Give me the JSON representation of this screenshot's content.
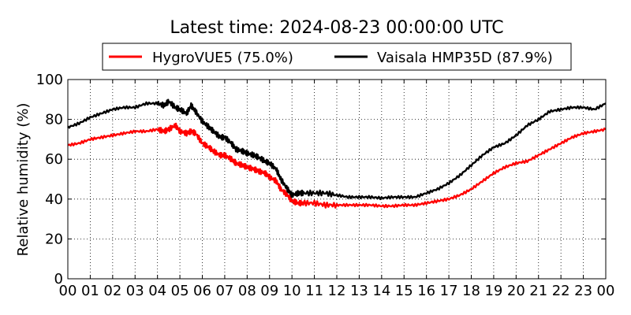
{
  "chart_data": {
    "type": "line",
    "title": "Latest time: 2024-08-23 00:00:00 UTC",
    "xlabel": "",
    "ylabel": "Relative humidity (%)",
    "xlim": [
      0,
      24
    ],
    "ylim": [
      0,
      100
    ],
    "x_tick_labels": [
      "00",
      "01",
      "02",
      "03",
      "04",
      "05",
      "06",
      "07",
      "08",
      "09",
      "10",
      "11",
      "12",
      "13",
      "14",
      "15",
      "16",
      "17",
      "18",
      "19",
      "20",
      "21",
      "22",
      "23",
      "00"
    ],
    "y_ticks": [
      0,
      20,
      40,
      60,
      80,
      100
    ],
    "grid": true,
    "legend_position": "top-center",
    "x_hours": [
      0,
      0.5,
      1,
      1.5,
      2,
      2.5,
      3,
      3.5,
      4,
      4.3,
      4.5,
      4.8,
      5,
      5.3,
      5.5,
      5.7,
      6,
      6.3,
      6.5,
      6.8,
      7,
      7.3,
      7.5,
      7.8,
      8,
      8.3,
      8.5,
      8.8,
      9,
      9.3,
      9.5,
      9.8,
      10,
      10.3,
      10.5,
      11,
      11.5,
      12,
      12.5,
      13,
      13.5,
      14,
      14.5,
      15,
      15.5,
      16,
      16.5,
      17,
      17.5,
      18,
      18.5,
      19,
      19.5,
      20,
      20.5,
      21,
      21.5,
      22,
      22.5,
      23,
      23.5,
      24
    ],
    "series": [
      {
        "name": "HygroVUE5 (75.0%)",
        "color": "#ff0000",
        "values": [
          67,
          68,
          70,
          71,
          72,
          73,
          74,
          74,
          75,
          74,
          75,
          77,
          74,
          73,
          74,
          73,
          68,
          66,
          64,
          62,
          62,
          60,
          58,
          57,
          56,
          55,
          54,
          53,
          51,
          49,
          45,
          42,
          39,
          38,
          38,
          38,
          37,
          37,
          37,
          37,
          37,
          36.5,
          36.5,
          37,
          37,
          38,
          39,
          40,
          42,
          45,
          49,
          53,
          56,
          58,
          59,
          62,
          65,
          68,
          71,
          73,
          74,
          75
        ]
      },
      {
        "name": "Vaisala HMP35D (87.9%)",
        "color": "#000000",
        "values": [
          76,
          78,
          81,
          83,
          85,
          86,
          86,
          88,
          88,
          87,
          89,
          86,
          85,
          83,
          87,
          84,
          79,
          76,
          74,
          71,
          71,
          68,
          65,
          64,
          63,
          62,
          61,
          59,
          58,
          55,
          50,
          45,
          42,
          43,
          43,
          43,
          43,
          42,
          41,
          41,
          41,
          40.5,
          41,
          41,
          41,
          43,
          45,
          48,
          52,
          57,
          62,
          66,
          68,
          72,
          77,
          80,
          84,
          85,
          86,
          86,
          85,
          88
        ]
      }
    ]
  }
}
